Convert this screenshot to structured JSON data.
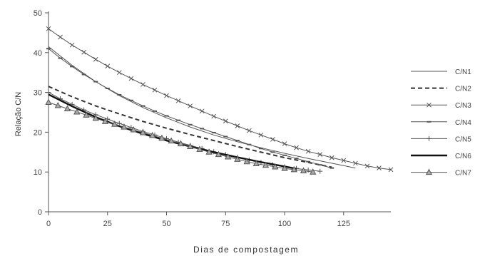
{
  "chart_data": {
    "type": "line",
    "title": "",
    "xlabel": "Dias de compostagem",
    "ylabel": "Relação C/N",
    "xlim": [
      0,
      145
    ],
    "ylim": [
      0,
      50
    ],
    "x_ticks": [
      0,
      25,
      50,
      75,
      100,
      125
    ],
    "y_ticks": [
      0,
      10,
      20,
      30,
      40,
      50
    ],
    "grid": false,
    "legend_position": "right",
    "series": [
      {
        "name": "C/N1",
        "style": "thin-solid",
        "marker": "none",
        "start_value": 41.5,
        "x": [
          0,
          10,
          20,
          30,
          40,
          50,
          60,
          70,
          80,
          90,
          100,
          110,
          120,
          130
        ],
        "y": [
          41.5,
          36.8,
          32.7,
          29.2,
          26.2,
          23.6,
          21.3,
          19.3,
          17.6,
          16.1,
          14.7,
          13.4,
          12.2,
          11.0
        ]
      },
      {
        "name": "C/N2",
        "style": "dashed",
        "marker": "none",
        "start_value": 31.5,
        "x": [
          0,
          10,
          20,
          30,
          40,
          50,
          60,
          70,
          80,
          90,
          100,
          110,
          120
        ],
        "y": [
          31.5,
          28.9,
          26.6,
          24.6,
          22.7,
          21.0,
          19.4,
          17.9,
          16.4,
          15.0,
          13.6,
          12.4,
          11.2
        ]
      },
      {
        "name": "C/N3",
        "style": "thin-solid",
        "marker": "x",
        "start_value": 46.0,
        "x": [
          0,
          5,
          10,
          15,
          20,
          25,
          30,
          35,
          40,
          45,
          50,
          55,
          60,
          65,
          70,
          75,
          80,
          85,
          90,
          95,
          100,
          105,
          110,
          115,
          120,
          125,
          130,
          135,
          140,
          145
        ],
        "y": [
          46.0,
          43.9,
          41.9,
          40.1,
          38.3,
          36.6,
          35.0,
          33.5,
          32.0,
          30.6,
          29.2,
          27.9,
          26.6,
          25.3,
          24.0,
          22.8,
          21.6,
          20.4,
          19.3,
          18.2,
          17.1,
          16.1,
          15.2,
          14.4,
          13.6,
          12.9,
          12.2,
          11.5,
          11.0,
          10.6
        ]
      },
      {
        "name": "C/N4",
        "style": "thin-solid",
        "marker": "dash",
        "start_value": 41.0,
        "x": [
          0,
          5,
          10,
          15,
          20,
          25,
          30,
          35,
          40,
          45,
          50,
          55,
          60,
          65,
          70,
          75,
          80,
          85,
          90,
          95,
          100,
          105,
          110,
          115,
          120
        ],
        "y": [
          41.0,
          38.6,
          36.5,
          34.5,
          32.7,
          31.0,
          29.4,
          28.0,
          26.6,
          25.3,
          24.1,
          23.0,
          21.9,
          20.9,
          19.9,
          18.9,
          17.9,
          16.9,
          15.9,
          15.0,
          14.2,
          13.4,
          12.6,
          11.8,
          11.0
        ]
      },
      {
        "name": "C/N5",
        "style": "thin-solid",
        "marker": "plus",
        "start_value": 30.0,
        "x": [
          0,
          5,
          10,
          15,
          20,
          25,
          30,
          35,
          40,
          45,
          50,
          55,
          60,
          65,
          70,
          75,
          80,
          85,
          90,
          95,
          100,
          105,
          110,
          115
        ],
        "y": [
          30.0,
          28.4,
          27.0,
          25.6,
          24.4,
          23.3,
          22.2,
          21.2,
          20.2,
          19.3,
          18.4,
          17.5,
          16.7,
          15.9,
          15.1,
          14.4,
          13.7,
          13.0,
          12.4,
          11.8,
          11.3,
          10.9,
          10.5,
          10.2
        ]
      },
      {
        "name": "C/N6",
        "style": "thick-solid",
        "marker": "none",
        "start_value": 29.5,
        "x": [
          0,
          10,
          20,
          30,
          40,
          50,
          60,
          70,
          80,
          90,
          100,
          105
        ],
        "y": [
          29.5,
          26.5,
          23.8,
          21.5,
          19.6,
          17.9,
          16.4,
          15.0,
          13.7,
          12.5,
          11.4,
          10.8
        ]
      },
      {
        "name": "C/N7",
        "style": "thin-solid",
        "marker": "triangle",
        "start_value": 27.5,
        "x": [
          0,
          4,
          8,
          12,
          16,
          20,
          24,
          28,
          32,
          36,
          40,
          44,
          48,
          52,
          56,
          60,
          64,
          68,
          72,
          76,
          80,
          84,
          88,
          92,
          96,
          100,
          104,
          108,
          112
        ],
        "y": [
          27.5,
          26.7,
          25.9,
          25.1,
          24.3,
          23.5,
          22.7,
          22.0,
          21.3,
          20.6,
          19.9,
          19.2,
          18.5,
          17.8,
          17.1,
          16.4,
          15.7,
          15.0,
          14.4,
          13.8,
          13.2,
          12.6,
          12.1,
          11.7,
          11.3,
          10.9,
          10.6,
          10.3,
          10.0
        ]
      }
    ]
  }
}
